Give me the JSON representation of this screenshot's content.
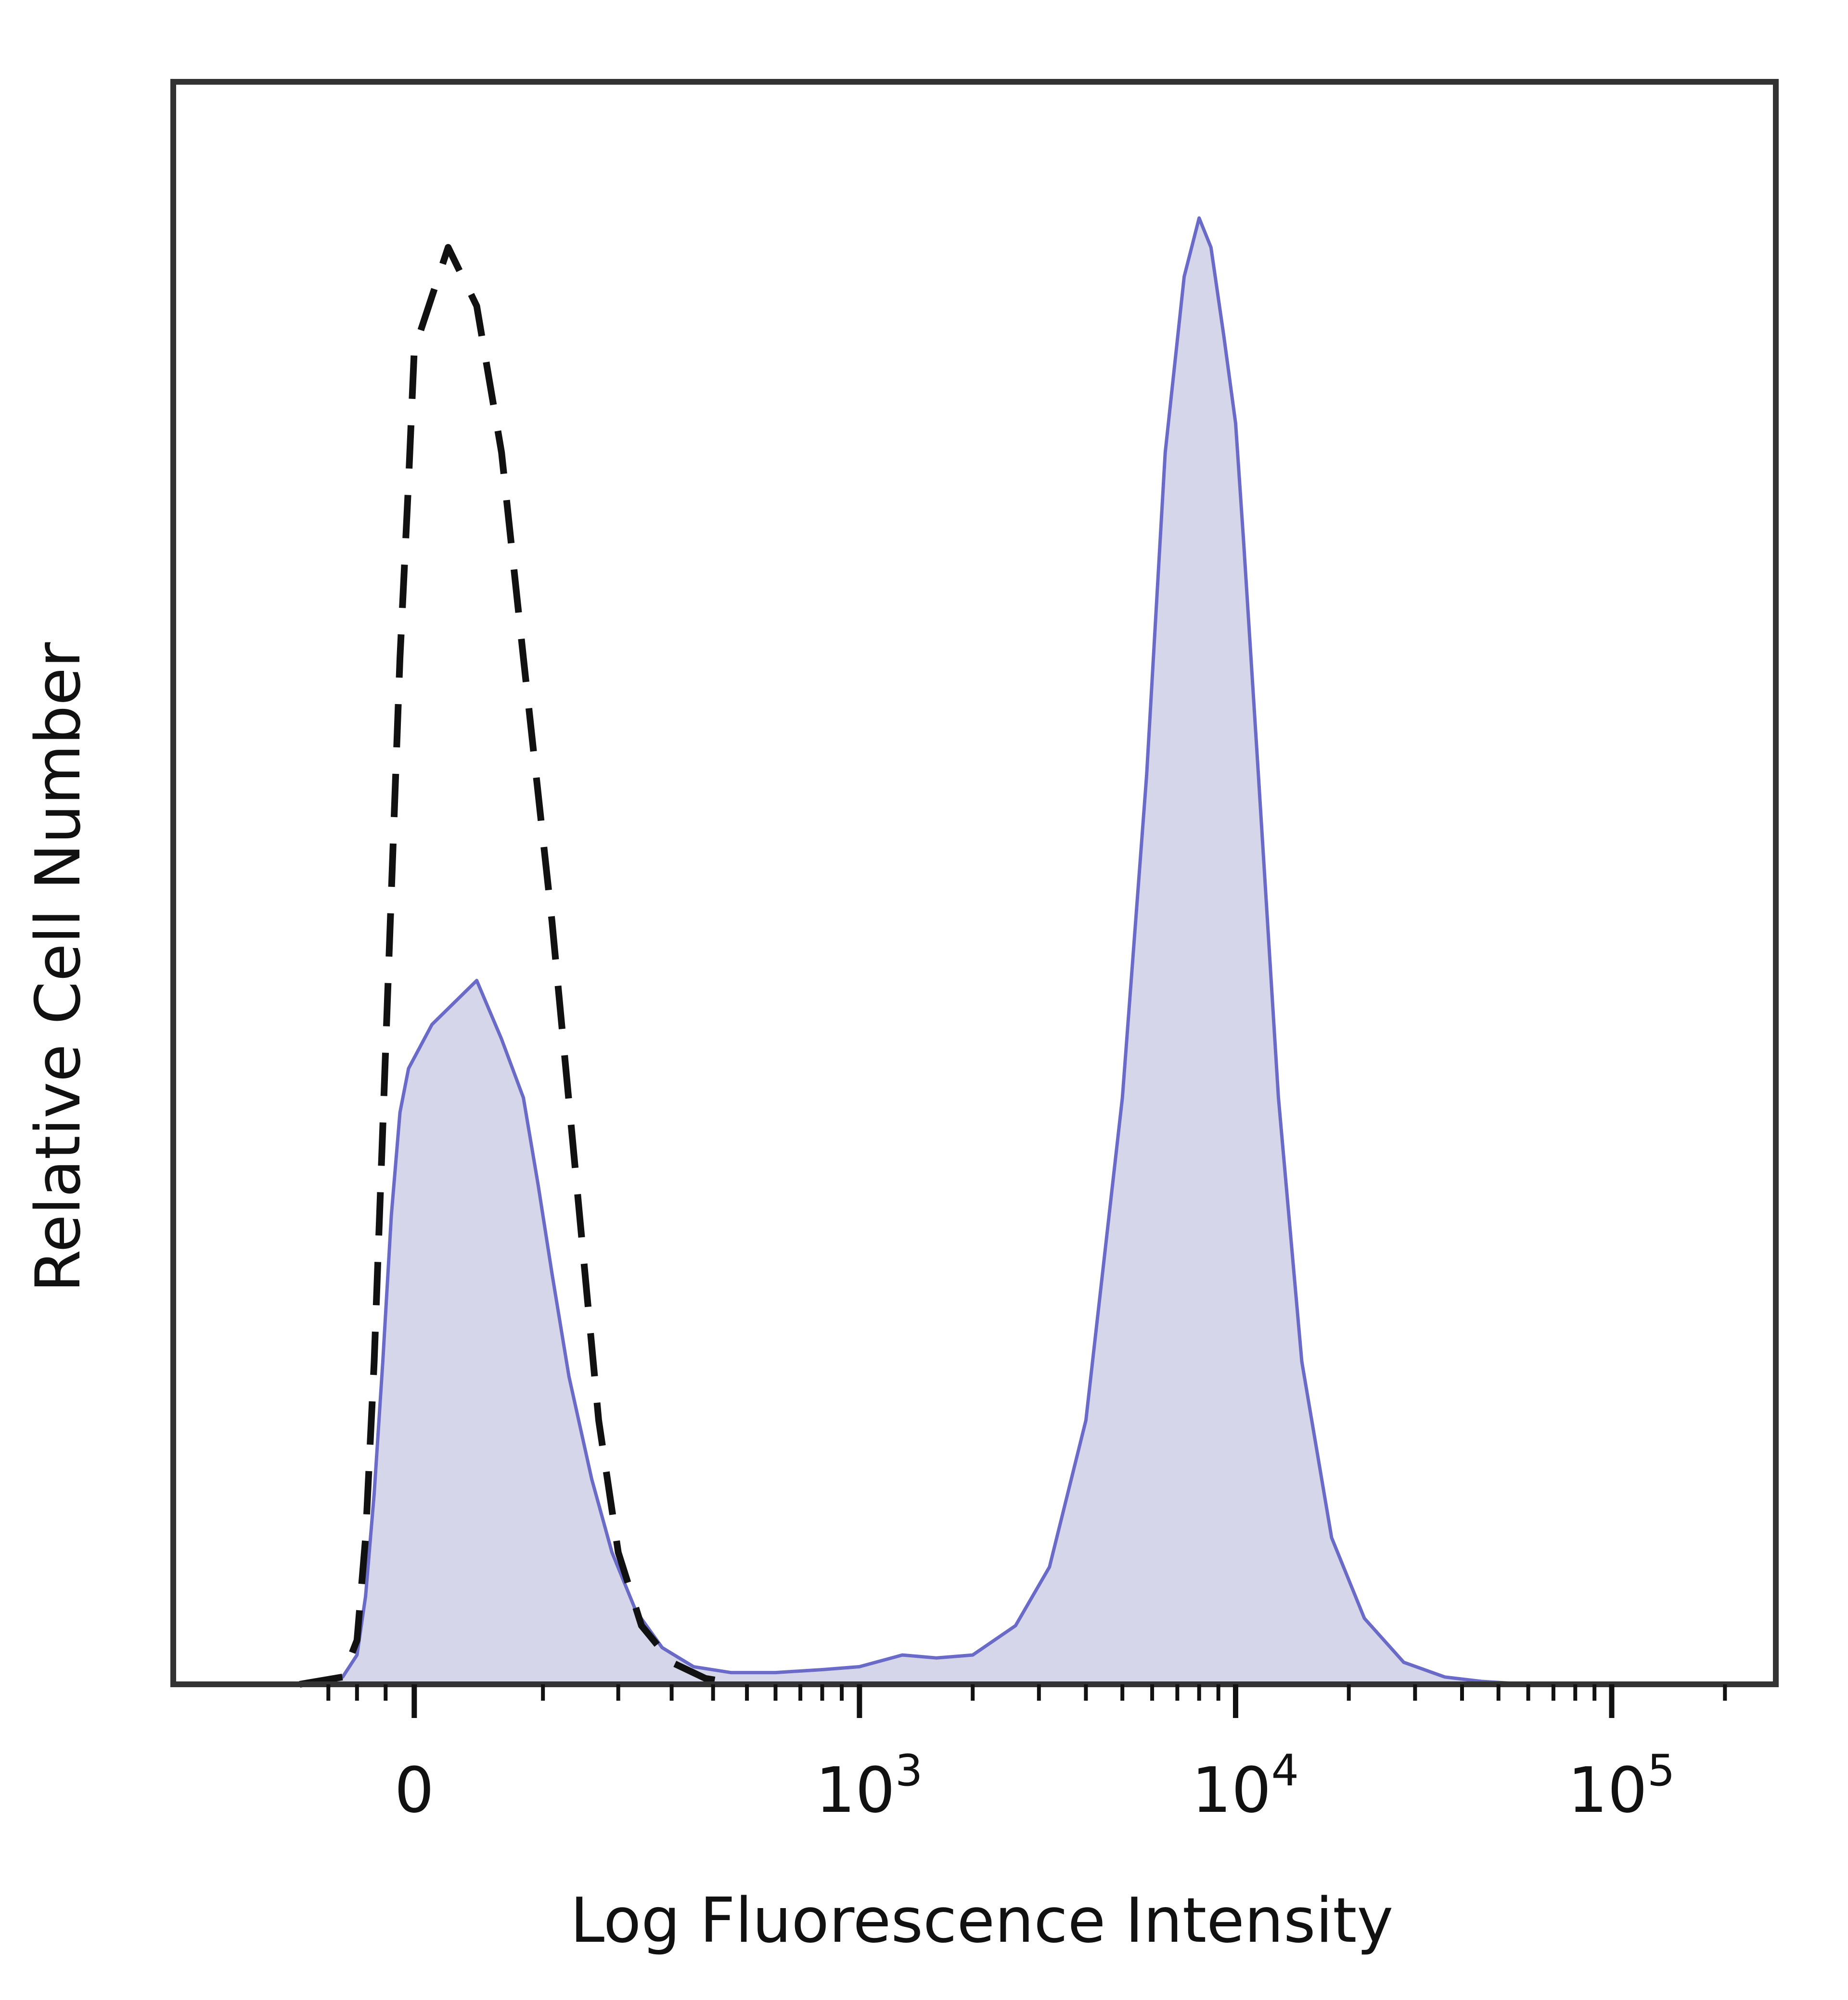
{
  "chart_data": {
    "type": "area",
    "xlabel": "Log Fluorescence Intensity",
    "ylabel": "Relative Cell Number",
    "x_scale": "biexponential",
    "x_range": [
      -400,
      200000
    ],
    "y_range": [
      0,
      1
    ],
    "grid": false,
    "legend": "none",
    "colors": {
      "filled_fill": "#d6d6ea",
      "filled_line": "#6a6ac8",
      "dashed_line": "#111111",
      "frame": "#333333"
    },
    "x_ticks": [
      {
        "value": 0,
        "base": "0",
        "exp": ""
      },
      {
        "value": 1000,
        "base": "10",
        "exp": "3"
      },
      {
        "value": 10000,
        "base": "10",
        "exp": "4"
      },
      {
        "value": 100000,
        "base": "10",
        "exp": "5"
      }
    ],
    "series": [
      {
        "style": "filled",
        "x": [
          -400,
          -250,
          -200,
          -170,
          -140,
          -110,
          -80,
          -50,
          -20,
          10,
          40,
          60,
          80,
          95,
          110,
          130,
          160,
          190,
          230,
          280,
          350,
          450,
          600,
          800,
          1000,
          1300,
          1600,
          2000,
          2600,
          3200,
          4000,
          5000,
          5800,
          6500,
          7300,
          8000,
          8600,
          9300,
          10000,
          10500,
          11500,
          13000,
          15000,
          18000,
          22000,
          28000,
          36000,
          45000,
          60000,
          100000,
          200000
        ],
        "y": [
          0,
          0.005,
          0.02,
          0.06,
          0.13,
          0.22,
          0.32,
          0.39,
          0.42,
          0.45,
          0.48,
          0.44,
          0.4,
          0.34,
          0.28,
          0.21,
          0.14,
          0.09,
          0.05,
          0.025,
          0.012,
          0.008,
          0.008,
          0.01,
          0.012,
          0.02,
          0.018,
          0.02,
          0.04,
          0.08,
          0.18,
          0.4,
          0.62,
          0.84,
          0.96,
          1.0,
          0.98,
          0.92,
          0.86,
          0.78,
          0.62,
          0.4,
          0.22,
          0.1,
          0.045,
          0.015,
          0.005,
          0.002,
          0.0,
          0.0,
          0.0
        ]
      },
      {
        "style": "dashed",
        "x": [
          -400,
          -250,
          -200,
          -170,
          -140,
          -110,
          -80,
          -50,
          -20,
          0,
          20,
          40,
          60,
          80,
          110,
          140,
          170,
          200,
          240,
          300,
          380,
          480
        ],
        "y": [
          0,
          0.005,
          0.03,
          0.1,
          0.22,
          0.38,
          0.54,
          0.7,
          0.82,
          0.91,
          0.98,
          0.94,
          0.84,
          0.7,
          0.52,
          0.34,
          0.18,
          0.09,
          0.04,
          0.015,
          0.004,
          0.0
        ]
      }
    ]
  }
}
